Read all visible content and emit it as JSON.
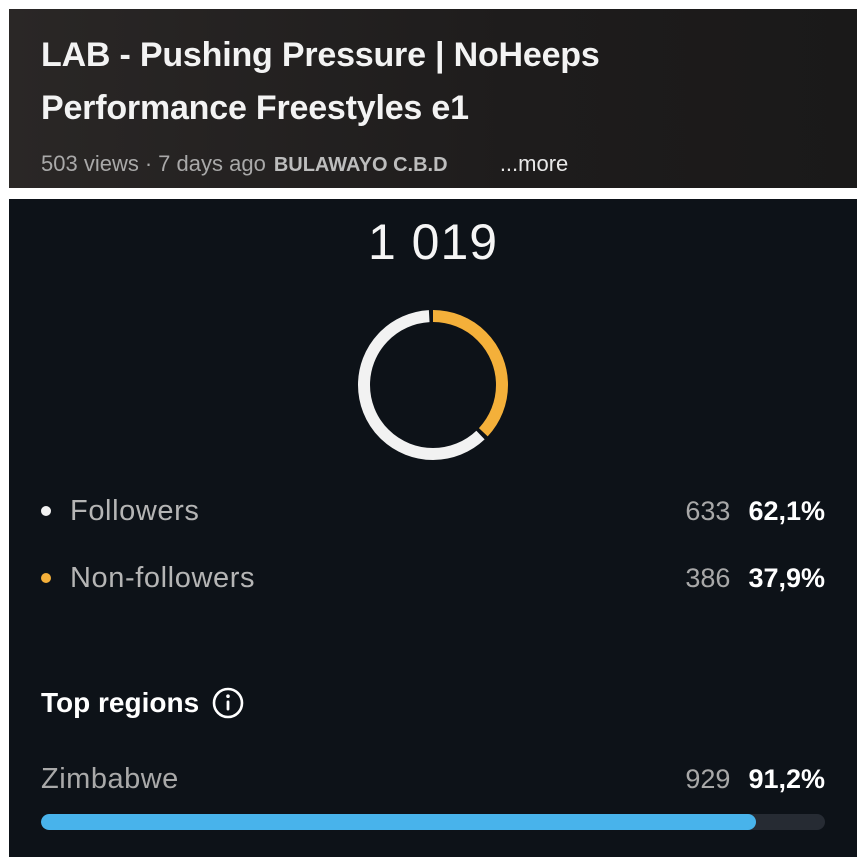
{
  "video": {
    "title": "LAB - Pushing Pressure | NoHeeps Performance Freestyles e1",
    "views": "503 views",
    "separator": "·",
    "age": "7 days ago",
    "location": "BULAWAYO C.B.D",
    "more_label": "...more"
  },
  "insights": {
    "total": "1 019",
    "audience": [
      {
        "label": "Followers",
        "count": "633",
        "percent": "62,1%",
        "fraction": 0.621,
        "color": "#f2f2f2"
      },
      {
        "label": "Non-followers",
        "count": "386",
        "percent": "37,9%",
        "fraction": 0.379,
        "color": "#f4b03a"
      }
    ],
    "top_regions": {
      "title": "Top regions",
      "info_icon": "info-icon",
      "items": [
        {
          "name": "Zimbabwe",
          "count": "929",
          "percent": "91,2%",
          "fraction": 0.912,
          "bar_color": "#48b3eb"
        }
      ]
    }
  }
}
